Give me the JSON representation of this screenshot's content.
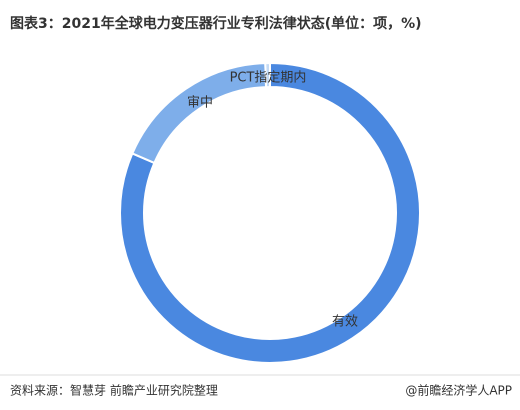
{
  "chart_data": {
    "type": "donut",
    "title": "图表3：2021年全球电力变压器行业专利法律状态(单位：项，%)",
    "categories": [
      "有效",
      "审中",
      "PCT指定期内"
    ],
    "values": [
      81.5,
      18,
      0.5
    ],
    "colors": [
      "#4a88e0",
      "#7eaeea",
      "#c5dbf5"
    ],
    "source": "资料来源：智慧芽 前瞻产业研究院整理",
    "footer": "@前瞻经济学人APP"
  }
}
